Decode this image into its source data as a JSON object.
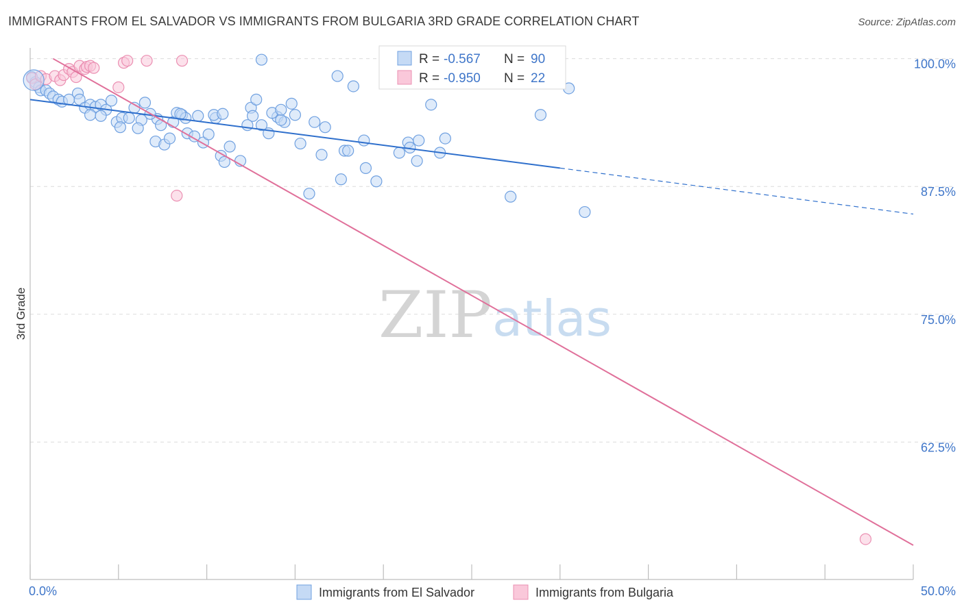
{
  "chart_data": {
    "type": "scatter",
    "title": "IMMIGRANTS FROM EL SALVADOR VS IMMIGRANTS FROM BULGARIA 3RD GRADE CORRELATION CHART",
    "source": "Source: ZipAtlas.com",
    "xlabel": "",
    "ylabel": "3rd Grade",
    "xlim": [
      0,
      50
    ],
    "ylim": [
      50.5,
      101.5
    ],
    "x_tick_labels": [
      {
        "value": 0,
        "label": "0.0%"
      },
      {
        "value": 50,
        "label": "50.0%"
      }
    ],
    "y_tick_labels": [
      {
        "value": 100,
        "label": "100.0%"
      },
      {
        "value": 87.5,
        "label": "87.5%"
      },
      {
        "value": 75,
        "label": "75.0%"
      },
      {
        "value": 62.5,
        "label": "62.5%"
      }
    ],
    "watermark": {
      "zip": "ZIP",
      "atlas": "atlas"
    },
    "stats_box": [
      {
        "r_label": "R =",
        "r_value": "-0.567",
        "n_label": "N =",
        "n_value": "90"
      },
      {
        "r_label": "R =",
        "r_value": "-0.950",
        "n_label": "N =",
        "n_value": "22"
      }
    ],
    "series": [
      {
        "name": "Immigrants from El Salvador",
        "color": "#6fa0e0",
        "fill": "#c5daf5",
        "line_color": "#2e6fcc",
        "trend": {
          "x0": 0,
          "y0": 96.0,
          "x1": 30,
          "y1": 89.3,
          "dash_x1": 50,
          "dash_y1": 84.8
        },
        "points": [
          [
            0.1,
            98.2
          ],
          [
            0.3,
            97.7
          ],
          [
            0.5,
            97.2
          ],
          [
            0.6,
            96.9
          ],
          [
            0.9,
            96.9
          ],
          [
            1.1,
            96.6
          ],
          [
            1.3,
            96.3
          ],
          [
            1.6,
            96.0
          ],
          [
            1.8,
            95.8
          ],
          [
            2.2,
            96.0
          ],
          [
            2.7,
            96.6
          ],
          [
            2.8,
            96.0
          ],
          [
            3.1,
            95.2
          ],
          [
            3.4,
            95.5
          ],
          [
            3.7,
            95.3
          ],
          [
            3.4,
            94.5
          ],
          [
            4.0,
            95.5
          ],
          [
            4.3,
            95.0
          ],
          [
            4.6,
            95.9
          ],
          [
            4.0,
            94.4
          ],
          [
            4.9,
            93.8
          ],
          [
            5.2,
            94.2
          ],
          [
            5.1,
            93.3
          ],
          [
            5.6,
            94.2
          ],
          [
            5.9,
            95.2
          ],
          [
            6.3,
            94.0
          ],
          [
            6.1,
            93.2
          ],
          [
            6.5,
            95.7
          ],
          [
            7.2,
            94.1
          ],
          [
            6.8,
            94.6
          ],
          [
            7.4,
            93.5
          ],
          [
            7.1,
            91.9
          ],
          [
            7.6,
            91.6
          ],
          [
            7.9,
            92.2
          ],
          [
            8.1,
            93.8
          ],
          [
            8.3,
            94.7
          ],
          [
            8.6,
            94.5
          ],
          [
            8.8,
            94.2
          ],
          [
            8.5,
            94.6
          ],
          [
            8.9,
            92.7
          ],
          [
            9.3,
            92.4
          ],
          [
            9.8,
            91.8
          ],
          [
            9.5,
            94.4
          ],
          [
            10.1,
            92.6
          ],
          [
            10.5,
            94.2
          ],
          [
            10.4,
            94.5
          ],
          [
            10.9,
            94.6
          ],
          [
            10.8,
            90.5
          ],
          [
            11.3,
            91.4
          ],
          [
            11.9,
            90.0
          ],
          [
            11.0,
            89.9
          ],
          [
            12.5,
            95.2
          ],
          [
            12.6,
            94.4
          ],
          [
            12.3,
            93.5
          ],
          [
            12.8,
            96.0
          ],
          [
            13.1,
            93.5
          ],
          [
            13.5,
            92.7
          ],
          [
            13.1,
            99.9
          ],
          [
            14.0,
            94.3
          ],
          [
            13.7,
            94.7
          ],
          [
            14.4,
            93.8
          ],
          [
            14.2,
            94.0
          ],
          [
            14.8,
            95.6
          ],
          [
            15.0,
            94.5
          ],
          [
            14.2,
            95.0
          ],
          [
            15.3,
            91.7
          ],
          [
            16.1,
            93.8
          ],
          [
            16.5,
            90.6
          ],
          [
            16.7,
            93.3
          ],
          [
            15.8,
            86.8
          ],
          [
            17.4,
            98.3
          ],
          [
            17.8,
            91.0
          ],
          [
            18.0,
            91.0
          ],
          [
            17.6,
            88.2
          ],
          [
            18.3,
            97.3
          ],
          [
            18.9,
            92.0
          ],
          [
            19.0,
            89.3
          ],
          [
            19.6,
            88.0
          ],
          [
            20.9,
            90.8
          ],
          [
            21.4,
            91.8
          ],
          [
            21.5,
            91.3
          ],
          [
            21.9,
            90.0
          ],
          [
            22.0,
            92.0
          ],
          [
            22.7,
            95.5
          ],
          [
            23.2,
            90.8
          ],
          [
            23.5,
            92.2
          ],
          [
            27.2,
            86.5
          ],
          [
            28.9,
            94.5
          ],
          [
            30.5,
            97.1
          ],
          [
            31.4,
            85.0
          ]
        ]
      },
      {
        "name": "Immigrants from Bulgaria",
        "color": "#eb8fb2",
        "fill": "#fac8da",
        "line_color": "#e0709a",
        "trend": {
          "x0": 1.3,
          "y0": 100.0,
          "x1": 50,
          "y1": 52.4
        },
        "points": [
          [
            0.1,
            98.1
          ],
          [
            0.3,
            97.5
          ],
          [
            0.6,
            98.3
          ],
          [
            0.9,
            98.0
          ],
          [
            1.4,
            98.3
          ],
          [
            1.7,
            97.9
          ],
          [
            1.9,
            98.4
          ],
          [
            2.2,
            99.0
          ],
          [
            2.4,
            98.7
          ],
          [
            2.6,
            98.2
          ],
          [
            2.8,
            99.3
          ],
          [
            3.1,
            99.0
          ],
          [
            3.2,
            99.2
          ],
          [
            3.4,
            99.3
          ],
          [
            3.6,
            99.1
          ],
          [
            5.0,
            97.2
          ],
          [
            5.3,
            99.6
          ],
          [
            5.5,
            99.8
          ],
          [
            6.6,
            99.8
          ],
          [
            8.3,
            86.6
          ],
          [
            8.6,
            99.8
          ],
          [
            47.3,
            53.0
          ]
        ]
      }
    ]
  }
}
